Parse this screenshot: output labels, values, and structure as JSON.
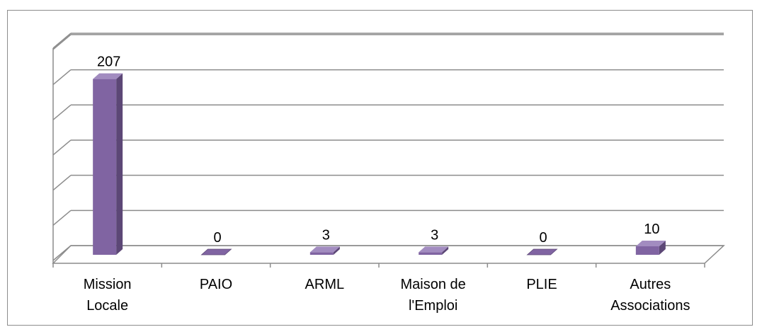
{
  "chart_data": {
    "type": "bar",
    "style": "3d-column",
    "categories": [
      [
        "Mission",
        "Locale"
      ],
      [
        "PAIO"
      ],
      [
        "ARML"
      ],
      [
        "Maison de",
        "l'Emploi"
      ],
      [
        "PLIE"
      ],
      [
        "Autres",
        "Associations"
      ]
    ],
    "values": [
      207,
      0,
      3,
      3,
      0,
      10
    ],
    "data_labels": [
      "207",
      "0",
      "3",
      "3",
      "0",
      "10"
    ],
    "ylim": [
      0,
      250
    ],
    "gridline_step": 41.4,
    "grid": true,
    "legend": "none",
    "title": "",
    "xlabel": "",
    "ylabel": "",
    "colors": {
      "bar_front": "#8064a2",
      "bar_side": "#5c4776",
      "bar_top": "#a28cc0",
      "grid": "#8c8c8c"
    }
  }
}
